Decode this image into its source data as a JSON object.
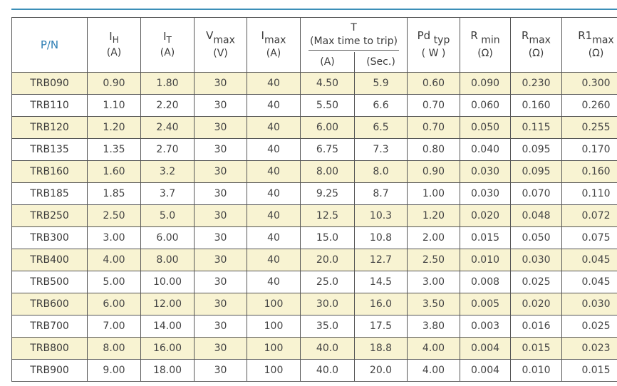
{
  "header": {
    "pn": "P/N",
    "ih_sym": "I",
    "ih_sub": "H",
    "ih_unit": "(A)",
    "it_sym": "I",
    "it_sub": "T",
    "it_unit": "(A)",
    "vmax_sym": "V",
    "vmax_sub": "max",
    "vmax_unit": "(V)",
    "imax_sym": "I",
    "imax_sub": "max",
    "imax_unit": "(A)",
    "t_sym": "T",
    "t_desc": "(Max time to trip)",
    "t_a_unit": "(A)",
    "t_sec_unit": "(Sec.)",
    "pd_sym": "Pd",
    "pd_sub": "typ",
    "pd_unit": "( W )",
    "rmin_sym": "R",
    "rmin_sub": "min",
    "rmin_unit": "(Ω)",
    "rmax_sym": "R",
    "rmax_sub": "max",
    "rmax_unit": "(Ω)",
    "r1max_sym": "R1",
    "r1max_sub": "max",
    "r1max_unit": "(Ω)"
  },
  "rows": [
    [
      "TRB090",
      "0.90",
      "1.80",
      "30",
      "40",
      "4.50",
      "5.9",
      "0.60",
      "0.090",
      "0.230",
      "0.300"
    ],
    [
      "TRB110",
      "1.10",
      "2.20",
      "30",
      "40",
      "5.50",
      "6.6",
      "0.70",
      "0.060",
      "0.160",
      "0.260"
    ],
    [
      "TRB120",
      "1.20",
      "2.40",
      "30",
      "40",
      "6.00",
      "6.5",
      "0.70",
      "0.050",
      "0.115",
      "0.255"
    ],
    [
      "TRB135",
      "1.35",
      "2.70",
      "30",
      "40",
      "6.75",
      "7.3",
      "0.80",
      "0.040",
      "0.095",
      "0.170"
    ],
    [
      "TRB160",
      "1.60",
      "3.2",
      "30",
      "40",
      "8.00",
      "8.0",
      "0.90",
      "0.030",
      "0.095",
      "0.160"
    ],
    [
      "TRB185",
      "1.85",
      "3.7",
      "30",
      "40",
      "9.25",
      "8.7",
      "1.00",
      "0.030",
      "0.070",
      "0.110"
    ],
    [
      "TRB250",
      "2.50",
      "5.0",
      "30",
      "40",
      "12.5",
      "10.3",
      "1.20",
      "0.020",
      "0.048",
      "0.072"
    ],
    [
      "TRB300",
      "3.00",
      "6.00",
      "30",
      "40",
      "15.0",
      "10.8",
      "2.00",
      "0.015",
      "0.050",
      "0.075"
    ],
    [
      "TRB400",
      "4.00",
      "8.00",
      "30",
      "40",
      "20.0",
      "12.7",
      "2.50",
      "0.010",
      "0.030",
      "0.045"
    ],
    [
      "TRB500",
      "5.00",
      "10.00",
      "30",
      "40",
      "25.0",
      "14.5",
      "3.00",
      "0.008",
      "0.025",
      "0.045"
    ],
    [
      "TRB600",
      "6.00",
      "12.00",
      "30",
      "100",
      "30.0",
      "16.0",
      "3.50",
      "0.005",
      "0.020",
      "0.030"
    ],
    [
      "TRB700",
      "7.00",
      "14.00",
      "30",
      "100",
      "35.0",
      "17.5",
      "3.80",
      "0.003",
      "0.016",
      "0.025"
    ],
    [
      "TRB800",
      "8.00",
      "16.00",
      "30",
      "100",
      "40.0",
      "18.8",
      "4.00",
      "0.004",
      "0.015",
      "0.023"
    ],
    [
      "TRB900",
      "9.00",
      "18.00",
      "30",
      "100",
      "40.0",
      "20.0",
      "4.00",
      "0.004",
      "0.010",
      "0.015"
    ]
  ]
}
